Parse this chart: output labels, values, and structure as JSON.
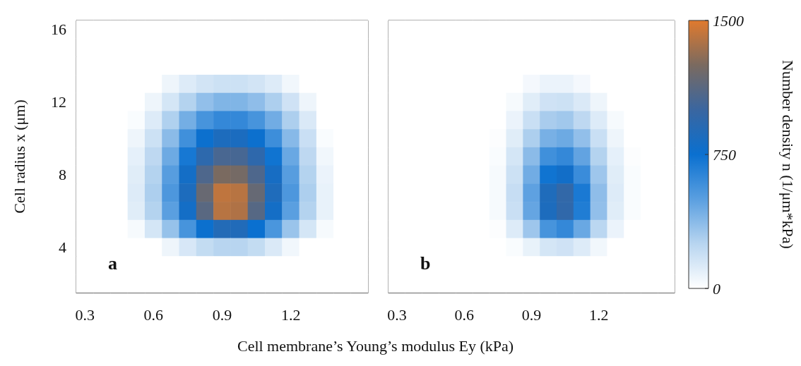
{
  "chart_data": {
    "type": "heatmap",
    "xlabel": "Cell membrane’s Young’s modulus Ey (kPa)",
    "ylabel": "Cell radius x (μm)",
    "annotations": [
      "a",
      "b"
    ],
    "clim": [
      0,
      1500
    ],
    "cticks": [
      0,
      750,
      1500
    ],
    "clabel": "Number density n (1/μm*kPa)",
    "categories": [
      "0.3",
      null,
      null,
      null,
      "0.6",
      null,
      null,
      null,
      "0.9",
      null,
      null,
      null,
      "1.2",
      null,
      null,
      null,
      null,
      null,
      "0.3",
      null,
      null,
      null,
      "0.6",
      null,
      null,
      null,
      "0.9",
      null,
      null,
      null,
      "1.2",
      null,
      null,
      null,
      null
    ],
    "y_categories": [
      "16",
      null,
      null,
      null,
      "12",
      null,
      null,
      null,
      "8",
      null,
      null,
      null,
      "4",
      null,
      null
    ],
    "cells": [
      [
        0,
        0,
        0,
        0,
        0,
        0,
        0,
        0,
        0,
        0,
        0,
        0,
        0,
        0,
        0,
        0,
        0,
        null,
        0,
        0,
        0,
        0,
        0,
        0,
        0,
        0,
        0,
        0,
        0,
        0,
        0,
        0,
        0,
        0,
        0
      ],
      [
        0,
        0,
        0,
        0,
        0,
        0,
        0,
        0,
        0,
        0,
        0,
        0,
        0,
        0,
        0,
        0,
        0,
        null,
        0,
        0,
        0,
        0,
        0,
        0,
        0,
        0,
        0,
        0,
        0,
        0,
        0,
        0,
        0,
        0,
        0
      ],
      [
        0,
        0,
        0,
        0,
        0,
        0,
        0,
        0,
        0,
        0,
        0,
        0,
        0,
        0,
        0,
        0,
        0,
        null,
        0,
        0,
        0,
        0,
        0,
        0,
        0,
        0,
        0,
        0,
        0,
        0,
        0,
        0,
        0,
        0,
        0
      ],
      [
        0,
        0,
        0,
        0,
        0,
        60,
        120,
        160,
        180,
        180,
        160,
        120,
        50,
        0,
        0,
        0,
        0,
        null,
        0,
        0,
        0,
        0,
        0,
        0,
        0,
        0,
        40,
        70,
        70,
        40,
        0,
        0,
        0,
        0,
        0
      ],
      [
        0,
        0,
        0,
        0,
        60,
        150,
        260,
        350,
        400,
        400,
        360,
        280,
        170,
        60,
        0,
        0,
        0,
        null,
        0,
        0,
        0,
        0,
        0,
        0,
        0,
        30,
        110,
        170,
        180,
        130,
        60,
        0,
        0,
        0,
        0
      ],
      [
        0,
        0,
        0,
        20,
        120,
        270,
        430,
        560,
        620,
        620,
        560,
        440,
        280,
        130,
        0,
        0,
        0,
        null,
        0,
        0,
        0,
        0,
        0,
        0,
        0,
        70,
        190,
        290,
        310,
        230,
        120,
        30,
        0,
        0,
        0
      ],
      [
        0,
        0,
        0,
        60,
        180,
        370,
        580,
        760,
        850,
        840,
        760,
        590,
        380,
        190,
        20,
        0,
        0,
        null,
        0,
        0,
        0,
        0,
        0,
        0,
        10,
        110,
        280,
        420,
        450,
        350,
        190,
        60,
        0,
        0,
        0
      ],
      [
        0,
        0,
        0,
        90,
        230,
        450,
        710,
        930,
        1060,
        1050,
        940,
        730,
        460,
        230,
        50,
        0,
        0,
        null,
        0,
        0,
        0,
        0,
        0,
        0,
        20,
        150,
        370,
        580,
        620,
        480,
        260,
        90,
        10,
        0,
        0
      ],
      [
        0,
        0,
        0,
        110,
        260,
        510,
        800,
        1080,
        1250,
        1230,
        1080,
        820,
        510,
        260,
        70,
        0,
        0,
        null,
        0,
        0,
        0,
        0,
        0,
        0,
        30,
        180,
        440,
        730,
        790,
        600,
        320,
        110,
        20,
        0,
        0
      ],
      [
        0,
        0,
        0,
        120,
        280,
        540,
        850,
        1180,
        1420,
        1400,
        1170,
        860,
        540,
        280,
        80,
        0,
        0,
        null,
        0,
        0,
        0,
        0,
        0,
        0,
        30,
        200,
        490,
        860,
        960,
        700,
        360,
        120,
        20,
        0,
        0
      ],
      [
        0,
        0,
        0,
        110,
        260,
        500,
        800,
        1120,
        1400,
        1380,
        1110,
        800,
        500,
        260,
        80,
        0,
        0,
        null,
        0,
        0,
        0,
        0,
        0,
        0,
        30,
        190,
        470,
        850,
        950,
        680,
        350,
        110,
        20,
        0,
        0
      ],
      [
        0,
        0,
        0,
        30,
        150,
        340,
        560,
        760,
        880,
        870,
        750,
        550,
        330,
        150,
        30,
        0,
        0,
        null,
        0,
        0,
        0,
        0,
        0,
        0,
        10,
        120,
        320,
        560,
        620,
        460,
        240,
        70,
        0,
        0,
        0
      ],
      [
        0,
        0,
        0,
        0,
        0,
        60,
        140,
        210,
        250,
        250,
        210,
        130,
        50,
        0,
        0,
        0,
        0,
        null,
        0,
        0,
        0,
        0,
        0,
        0,
        0,
        20,
        80,
        150,
        170,
        120,
        50,
        0,
        0,
        0,
        0
      ],
      [
        0,
        0,
        0,
        0,
        0,
        0,
        0,
        0,
        0,
        0,
        0,
        0,
        0,
        0,
        0,
        0,
        0,
        null,
        0,
        0,
        0,
        0,
        0,
        0,
        0,
        0,
        0,
        0,
        0,
        0,
        0,
        0,
        0,
        0,
        0
      ],
      [
        0,
        0,
        0,
        0,
        0,
        0,
        0,
        0,
        0,
        0,
        0,
        0,
        0,
        0,
        0,
        0,
        0,
        null,
        0,
        0,
        0,
        0,
        0,
        0,
        0,
        0,
        0,
        0,
        0,
        0,
        0,
        0,
        0,
        0,
        0
      ]
    ]
  }
}
